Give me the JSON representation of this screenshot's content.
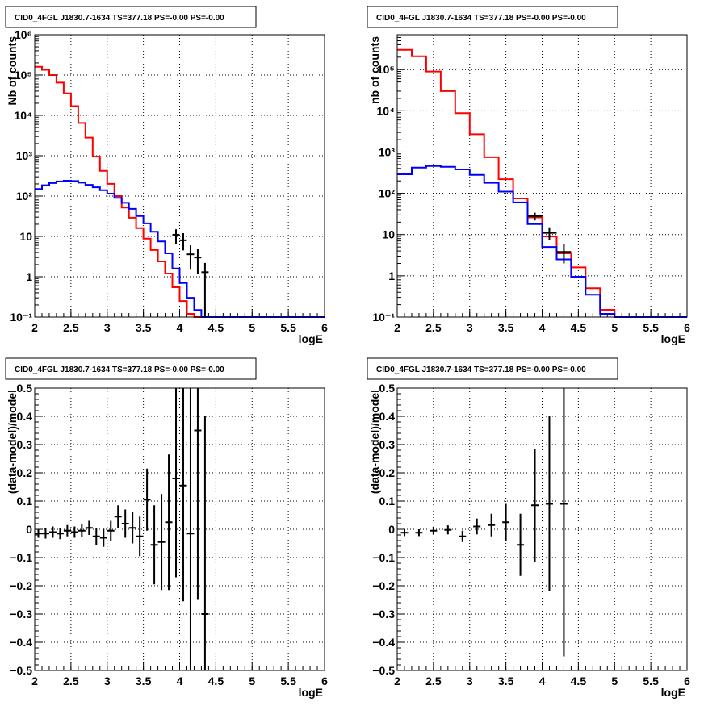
{
  "chart_data": [
    {
      "type": "line",
      "title": "CID0_4FGL J1830.7-1634 TS=377.18 PS=-0.00 PS=-0.00",
      "xlabel": "logE",
      "ylabel": "Nb of counts",
      "xlim": [
        2,
        6
      ],
      "ylim": [
        0.1,
        1000000
      ],
      "yscale": "log",
      "grid": true,
      "x_ticks": [
        "2",
        "2.5",
        "3",
        "3.5",
        "4",
        "4.5",
        "5",
        "5.5",
        "6"
      ],
      "y_ticks": [
        "10⁻¹",
        "1",
        "10",
        "10²",
        "10³",
        "10⁴",
        "10⁵",
        "10⁶"
      ],
      "bin_edges": [
        2.0,
        2.1,
        2.2,
        2.3,
        2.4,
        2.5,
        2.6,
        2.7,
        2.8,
        2.9,
        3.0,
        3.1,
        3.2,
        3.3,
        3.4,
        3.5,
        3.6,
        3.7,
        3.8,
        3.9,
        4.0,
        4.1,
        4.2,
        4.3,
        4.4,
        4.5,
        4.6,
        4.7,
        4.8,
        4.9,
        5.0,
        5.1,
        5.2,
        5.3,
        5.4,
        5.5,
        5.6,
        5.7,
        5.8,
        5.9,
        6.0
      ],
      "series": [
        {
          "color": "#ff0000",
          "values": [
            160000,
            135000,
            100000,
            65000,
            35000,
            17000,
            6500,
            2800,
            950,
            420,
            200,
            100,
            52,
            29,
            16,
            8.8,
            4.6,
            2.4,
            1.2,
            0.55,
            0.25,
            0.12,
            0.1,
            0.1,
            0.1,
            0.1,
            0.1,
            0.1,
            0.1,
            0.1,
            0.1,
            0.1,
            0.1,
            0.1,
            0.1,
            0.1,
            0.1,
            0.1,
            0.1,
            0.1
          ]
        },
        {
          "color": "#0000ff",
          "values": [
            150,
            185,
            210,
            230,
            240,
            235,
            215,
            190,
            165,
            140,
            115,
            90,
            68,
            48,
            32,
            21,
            13,
            7.5,
            3.8,
            1.6,
            0.7,
            0.3,
            0.15,
            0.1,
            0.1,
            0.1,
            0.1,
            0.1,
            0.1,
            0.1,
            0.1,
            0.1,
            0.1,
            0.1,
            0.1,
            0.1,
            0.1,
            0.1,
            0.1,
            0.1
          ]
        }
      ],
      "points": [
        {
          "x": 3.95,
          "y": 11,
          "ylo": 6.5,
          "yhi": 15
        },
        {
          "x": 4.05,
          "y": 8,
          "ylo": 4.5,
          "yhi": 12
        },
        {
          "x": 4.15,
          "y": 3.6,
          "ylo": 1.5,
          "yhi": 6
        },
        {
          "x": 4.25,
          "y": 3,
          "ylo": 1.2,
          "yhi": 5
        },
        {
          "x": 4.35,
          "y": 1.3,
          "ylo": 0.1,
          "yhi": 2.2
        }
      ]
    },
    {
      "type": "line",
      "title": "CID0_4FGL J1830.7-1634 TS=377.18 PS=-0.00 PS=-0.00",
      "xlabel": "logE",
      "ylabel": "nb of counts",
      "xlim": [
        2,
        6
      ],
      "ylim": [
        0.1,
        700000
      ],
      "yscale": "log",
      "grid": true,
      "x_ticks": [
        "2",
        "2.5",
        "3",
        "3.5",
        "4",
        "4.5",
        "5",
        "5.5",
        "6"
      ],
      "y_ticks": [
        "10⁻¹",
        "1",
        "10",
        "10²",
        "10³",
        "10⁴",
        "10⁵"
      ],
      "bin_edges": [
        2.0,
        2.2,
        2.4,
        2.6,
        2.8,
        3.0,
        3.2,
        3.4,
        3.6,
        3.8,
        4.0,
        4.2,
        4.4,
        4.6,
        4.8,
        5.0,
        5.2,
        5.4,
        5.6,
        5.8,
        6.0
      ],
      "series": [
        {
          "color": "#ff0000",
          "values": [
            300000,
            210000,
            90000,
            30000,
            8800,
            2700,
            750,
            220,
            75,
            26,
            9,
            3.5,
            1.6,
            0.5,
            0.15,
            0.1,
            0.1,
            0.1,
            0.1,
            0.1
          ]
        },
        {
          "color": "#0000ff",
          "values": [
            290,
            420,
            460,
            440,
            380,
            280,
            180,
            110,
            60,
            18,
            5,
            2.5,
            0.95,
            0.35,
            0.12,
            0.1,
            0.1,
            0.1,
            0.1,
            0.1
          ]
        }
      ],
      "points": [
        {
          "x": 3.9,
          "y": 28,
          "ylo": 22,
          "yhi": 34
        },
        {
          "x": 4.1,
          "y": 11,
          "ylo": 7.5,
          "yhi": 15
        },
        {
          "x": 4.3,
          "y": 3.8,
          "ylo": 2,
          "yhi": 6
        }
      ]
    },
    {
      "type": "scatter",
      "title": "CID0_4FGL J1830.7-1634 TS=377.18 PS=-0.00 PS=-0.00",
      "xlabel": "logE",
      "ylabel": "(data-model)/model",
      "xlim": [
        2,
        6
      ],
      "ylim": [
        -0.5,
        0.5
      ],
      "grid": true,
      "x_ticks": [
        "2",
        "2.5",
        "3",
        "3.5",
        "4",
        "4.5",
        "5",
        "5.5",
        "6"
      ],
      "y_ticks": [
        "−0.5",
        "−0.4",
        "−0.3",
        "−0.2",
        "−0.1",
        "0",
        "0.1",
        "0.2",
        "0.3",
        "0.4",
        "0.5"
      ],
      "points": [
        {
          "x": 2.05,
          "y": -0.015,
          "err": 0.015
        },
        {
          "x": 2.15,
          "y": -0.015,
          "err": 0.018
        },
        {
          "x": 2.25,
          "y": -0.01,
          "err": 0.02
        },
        {
          "x": 2.35,
          "y": -0.015,
          "err": 0.02
        },
        {
          "x": 2.45,
          "y": -0.005,
          "err": 0.02
        },
        {
          "x": 2.55,
          "y": -0.01,
          "err": 0.02
        },
        {
          "x": 2.65,
          "y": -0.005,
          "err": 0.022
        },
        {
          "x": 2.75,
          "y": 0.005,
          "err": 0.025
        },
        {
          "x": 2.85,
          "y": -0.025,
          "err": 0.03
        },
        {
          "x": 2.95,
          "y": -0.03,
          "err": 0.032
        },
        {
          "x": 3.05,
          "y": -0.005,
          "err": 0.035
        },
        {
          "x": 3.15,
          "y": 0.045,
          "err": 0.04
        },
        {
          "x": 3.25,
          "y": 0.02,
          "err": 0.05
        },
        {
          "x": 3.35,
          "y": 0.005,
          "err": 0.055
        },
        {
          "x": 3.45,
          "y": -0.025,
          "err": 0.07
        },
        {
          "x": 3.55,
          "y": 0.105,
          "err": 0.11
        },
        {
          "x": 3.65,
          "y": -0.055,
          "err": 0.14
        },
        {
          "x": 3.75,
          "y": -0.045,
          "err": 0.17
        },
        {
          "x": 3.85,
          "y": 0.025,
          "err": 0.24
        },
        {
          "x": 3.95,
          "y": 0.18,
          "err": 0.35
        },
        {
          "x": 4.05,
          "y": 0.155,
          "err": 0.41
        },
        {
          "x": 4.15,
          "y": -0.015,
          "err": 0.52
        },
        {
          "x": 4.25,
          "y": 0.35,
          "err": 0.6
        },
        {
          "x": 4.35,
          "y": -0.3,
          "err": 0.7
        }
      ]
    },
    {
      "type": "scatter",
      "title": "CID0_4FGL J1830.7-1634 TS=377.18 PS=-0.00 PS=-0.00",
      "xlabel": "logE",
      "ylabel": "(data-model)/model",
      "xlim": [
        2,
        6
      ],
      "ylim": [
        -0.5,
        0.5
      ],
      "grid": true,
      "x_ticks": [
        "2",
        "2.5",
        "3",
        "3.5",
        "4",
        "4.5",
        "5",
        "5.5",
        "6"
      ],
      "y_ticks": [
        "−0.5",
        "−0.4",
        "−0.3",
        "−0.2",
        "−0.1",
        "0",
        "0.1",
        "0.2",
        "0.3",
        "0.4",
        "0.5"
      ],
      "points": [
        {
          "x": 2.1,
          "y": -0.012,
          "err": 0.012
        },
        {
          "x": 2.3,
          "y": -0.012,
          "err": 0.012
        },
        {
          "x": 2.5,
          "y": -0.005,
          "err": 0.014
        },
        {
          "x": 2.7,
          "y": -0.002,
          "err": 0.016
        },
        {
          "x": 2.9,
          "y": -0.025,
          "err": 0.02
        },
        {
          "x": 3.1,
          "y": 0.01,
          "err": 0.028
        },
        {
          "x": 3.3,
          "y": 0.015,
          "err": 0.04
        },
        {
          "x": 3.5,
          "y": 0.025,
          "err": 0.065
        },
        {
          "x": 3.7,
          "y": -0.055,
          "err": 0.11
        },
        {
          "x": 3.9,
          "y": 0.085,
          "err": 0.2
        },
        {
          "x": 4.1,
          "y": 0.09,
          "err": 0.31
        },
        {
          "x": 4.3,
          "y": 0.09,
          "err": 0.54
        }
      ]
    }
  ]
}
